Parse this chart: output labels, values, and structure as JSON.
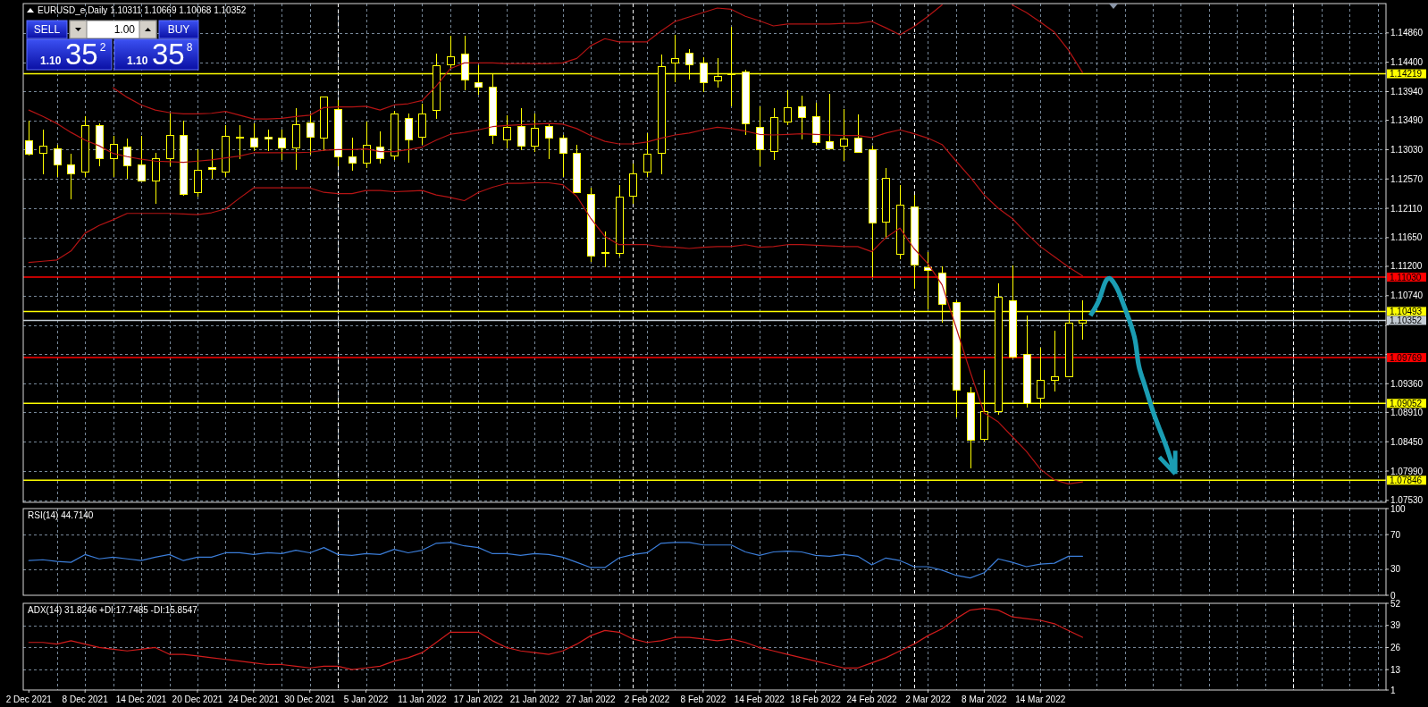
{
  "chart_data": [
    {
      "type": "candlestick",
      "title": "EURUSD_e,Daily 1.10311 1.10669 1.10068 1.10352",
      "annotations": [
        "SELL",
        "1.00",
        "BUY",
        "1.10",
        "35$^{2}$",
        "1.10",
        "35$^{8}$"
      ],
      "categories": [
        null,
        null,
        null,
        null,
        null,
        null,
        null,
        null,
        null,
        null,
        null,
        null,
        null,
        null,
        null,
        null,
        null,
        null,
        null,
        null,
        null,
        null,
        null,
        null,
        null,
        null,
        null,
        null,
        null,
        null,
        null,
        null,
        null,
        null,
        null,
        null,
        null,
        null,
        null,
        null,
        null,
        null,
        null,
        null,
        null,
        null,
        null,
        null,
        null,
        null,
        null,
        null,
        null,
        null,
        null,
        null,
        null,
        null,
        null,
        null,
        null,
        null,
        null,
        null,
        null,
        null,
        null,
        null,
        null,
        null,
        null,
        null,
        null,
        null,
        null,
        null,
        null,
        null,
        null,
        null,
        null,
        null,
        null,
        null,
        null,
        null,
        null,
        null,
        null,
        null,
        null,
        null,
        null,
        null,
        null,
        null,
        null
      ],
      "color": "#ffff00",
      "ohlc": [
        [
          1.1317,
          1.1348,
          1.1295,
          1.1296
        ],
        [
          1.1298,
          1.1334,
          1.1266,
          1.1309
        ],
        [
          1.1305,
          1.1311,
          1.1262,
          1.128
        ],
        [
          1.128,
          1.1297,
          1.1226,
          1.1266
        ],
        [
          1.1268,
          1.1355,
          1.1262,
          1.1341
        ],
        [
          1.1341,
          1.1344,
          1.1278,
          1.1289
        ],
        [
          1.1289,
          1.1324,
          1.1262,
          1.1312
        ],
        [
          1.1308,
          1.132,
          1.1259,
          1.1278
        ],
        [
          1.128,
          1.1324,
          1.1254,
          1.1254
        ],
        [
          1.1254,
          1.1298,
          1.122,
          1.1289
        ],
        [
          1.1289,
          1.136,
          1.1278,
          1.1326
        ],
        [
          1.1326,
          1.1348,
          1.1232,
          1.1234
        ],
        [
          1.1236,
          1.1303,
          1.123,
          1.1272
        ],
        [
          1.1276,
          1.1303,
          1.1259,
          1.1273
        ],
        [
          1.1269,
          1.1341,
          1.1262,
          1.1325
        ],
        [
          1.1323,
          1.1341,
          1.129,
          1.1323
        ],
        [
          1.1322,
          1.1344,
          1.1302,
          1.1308
        ],
        [
          1.1323,
          1.1334,
          1.1302,
          1.1321
        ],
        [
          1.1322,
          1.1334,
          1.1288,
          1.1307
        ],
        [
          1.1306,
          1.1368,
          1.1273,
          1.1343
        ],
        [
          1.1346,
          1.136,
          1.1296,
          1.1323
        ],
        [
          1.1322,
          1.1386,
          1.1302,
          1.1386
        ],
        [
          1.1366,
          1.138,
          1.1278,
          1.1292
        ],
        [
          1.1292,
          1.1322,
          1.1271,
          1.1282
        ],
        [
          1.1283,
          1.1347,
          1.1276,
          1.1311
        ],
        [
          1.1308,
          1.1332,
          1.1283,
          1.1289
        ],
        [
          1.1294,
          1.1364,
          1.1288,
          1.1359
        ],
        [
          1.1352,
          1.136,
          1.1284,
          1.1319
        ],
        [
          1.1323,
          1.1375,
          1.1312,
          1.1359
        ],
        [
          1.1365,
          1.1453,
          1.1353,
          1.1436
        ],
        [
          1.1437,
          1.1482,
          1.1433,
          1.145
        ],
        [
          1.1453,
          1.1482,
          1.1398,
          1.1413
        ],
        [
          1.1408,
          1.1435,
          1.139,
          1.1402
        ],
        [
          1.1401,
          1.1422,
          1.1313,
          1.1326
        ],
        [
          1.1319,
          1.1357,
          1.1306,
          1.1339
        ],
        [
          1.134,
          1.1368,
          1.1303,
          1.1309
        ],
        [
          1.1309,
          1.1359,
          1.1301,
          1.1337
        ],
        [
          1.134,
          1.1344,
          1.129,
          1.1322
        ],
        [
          1.1322,
          1.1326,
          1.1262,
          1.1298
        ],
        [
          1.1298,
          1.131,
          1.1236,
          1.1236
        ],
        [
          1.1234,
          1.1243,
          1.1129,
          1.1137
        ],
        [
          1.1143,
          1.1174,
          1.112,
          1.1143
        ],
        [
          1.1141,
          1.1248,
          1.1137,
          1.1229
        ],
        [
          1.123,
          1.1281,
          1.122,
          1.1266
        ],
        [
          1.1268,
          1.1329,
          1.1262,
          1.1296
        ],
        [
          1.1298,
          1.1452,
          1.1266,
          1.1434
        ],
        [
          1.1439,
          1.1483,
          1.141,
          1.1447
        ],
        [
          1.1455,
          1.146,
          1.1414,
          1.1437
        ],
        [
          1.1439,
          1.1448,
          1.1395,
          1.1408
        ],
        [
          1.1412,
          1.1447,
          1.1401,
          1.1419
        ],
        [
          1.1422,
          1.1495,
          1.1372,
          1.1421
        ],
        [
          1.1425,
          1.1428,
          1.1328,
          1.1344
        ],
        [
          1.1339,
          1.1371,
          1.1278,
          1.1303
        ],
        [
          1.1301,
          1.1368,
          1.1288,
          1.1354
        ],
        [
          1.1347,
          1.1396,
          1.1343,
          1.1369
        ],
        [
          1.1371,
          1.1387,
          1.1321,
          1.1354
        ],
        [
          1.1356,
          1.1377,
          1.1312,
          1.1315
        ],
        [
          1.1316,
          1.139,
          1.1305,
          1.1305
        ],
        [
          1.1309,
          1.1366,
          1.1287,
          1.1321
        ],
        [
          1.1322,
          1.1358,
          1.13,
          1.13
        ],
        [
          1.1303,
          1.1309,
          1.1105,
          1.1189
        ],
        [
          1.119,
          1.1274,
          1.1165,
          1.1259
        ],
        [
          1.1139,
          1.1247,
          1.1133,
          1.1217
        ],
        [
          1.1214,
          1.1232,
          1.1087,
          1.1123
        ],
        [
          1.1119,
          1.1143,
          1.1054,
          1.1115
        ],
        [
          1.111,
          1.112,
          1.1033,
          1.1061
        ],
        [
          1.1064,
          1.1067,
          1.0884,
          1.0926
        ],
        [
          1.0923,
          1.0931,
          1.0805,
          1.0848
        ],
        [
          1.085,
          1.0957,
          1.0846,
          1.0893
        ],
        [
          1.0893,
          1.1094,
          1.0889,
          1.1072
        ],
        [
          1.1067,
          1.1121,
          1.0977,
          1.0979
        ],
        [
          1.0983,
          1.1043,
          1.09,
          1.0905
        ],
        [
          1.0914,
          1.0993,
          1.0899,
          1.0942
        ],
        [
          1.0942,
          1.1019,
          1.0925,
          1.0947
        ],
        [
          1.0947,
          1.1047,
          1.0947,
          1.1031
        ],
        [
          1.10311,
          1.10669,
          1.10068,
          1.10352
        ],
        null,
        null,
        null,
        null,
        null,
        null,
        null,
        null,
        null,
        null,
        null,
        null,
        null,
        null,
        null,
        null,
        null,
        null,
        null,
        null,
        null
      ],
      "series": [
        {
          "type": "line",
          "color": "#b41414",
          "values": [
            null,
            null,
            null,
            null,
            null,
            null,
            1.14,
            1.1385,
            1.1373,
            1.1365,
            1.1361,
            1.1359,
            1.1359,
            1.136,
            1.1363,
            1.1357,
            1.1351,
            1.1351,
            1.1352,
            1.1355,
            1.1357,
            1.1369,
            1.137,
            1.137,
            1.1371,
            1.1365,
            1.1373,
            1.1375,
            1.138,
            1.1403,
            1.143,
            1.1439,
            1.1439,
            1.1439,
            1.1438,
            1.1438,
            1.1438,
            1.1438,
            1.1439,
            1.1446,
            1.1466,
            1.1477,
            1.1472,
            1.1472,
            1.1472,
            1.1489,
            1.1504,
            1.1511,
            1.1518,
            1.1525,
            1.1523,
            1.1512,
            1.1505,
            1.1497,
            1.15,
            1.15,
            1.15,
            1.15,
            1.1501,
            1.1501,
            1.1504,
            1.1494,
            1.1483,
            1.1496,
            1.1512,
            1.153,
            null,
            null,
            null,
            null,
            1.153,
            1.1518,
            1.1503,
            1.1487,
            1.1459,
            1.1424,
            null,
            null,
            null,
            null,
            null,
            null,
            null,
            null,
            null,
            null,
            null,
            null,
            null,
            null,
            null,
            null,
            null,
            null,
            null,
            null,
            null
          ]
        },
        {
          "type": "line",
          "color": "#b41414",
          "values": [
            1.1365,
            1.1355,
            1.1344,
            1.133,
            1.1318,
            1.1309,
            1.1297,
            1.1292,
            1.1288,
            1.1285,
            1.1284,
            1.1283,
            1.1285,
            1.1287,
            1.129,
            1.1293,
            1.1298,
            1.1298,
            1.1298,
            1.1298,
            1.1299,
            1.1302,
            1.1303,
            1.1303,
            1.1304,
            1.13,
            1.13,
            1.1303,
            1.1307,
            1.1318,
            1.1327,
            1.133,
            1.1334,
            1.1339,
            1.1341,
            1.1342,
            1.1343,
            1.1344,
            1.1343,
            1.1336,
            1.1325,
            1.1316,
            1.1312,
            1.1312,
            1.1315,
            1.1321,
            1.1326,
            1.1329,
            1.1334,
            1.1338,
            1.1336,
            1.1332,
            1.1327,
            1.1326,
            1.1327,
            1.1328,
            1.1327,
            1.1326,
            1.1325,
            1.1325,
            1.1322,
            1.1329,
            1.1334,
            1.1328,
            1.1321,
            1.1311,
            1.1285,
            1.126,
            1.1232,
            1.1211,
            1.1195,
            1.1172,
            1.1151,
            1.1135,
            1.1119,
            1.1105,
            null,
            null,
            null,
            null,
            null,
            null,
            null,
            null,
            null,
            null,
            null,
            null,
            null,
            null,
            null,
            null,
            null,
            null,
            null,
            null,
            null
          ]
        },
        {
          "type": "line",
          "color": "#b41414",
          "values": [
            1.1126,
            1.1128,
            1.113,
            1.1144,
            1.1172,
            1.1184,
            1.1193,
            1.1203,
            1.1203,
            1.1203,
            1.1203,
            1.1202,
            1.1201,
            1.1204,
            1.121,
            1.1227,
            1.1243,
            1.1243,
            1.1243,
            1.1243,
            1.1243,
            1.1236,
            1.1234,
            1.1234,
            1.1239,
            1.1239,
            1.1237,
            1.1238,
            1.1239,
            1.1232,
            1.1228,
            1.1223,
            1.1236,
            1.1244,
            1.125,
            1.125,
            1.1251,
            1.1251,
            1.1248,
            1.123,
            1.1195,
            1.1167,
            1.1154,
            1.1154,
            1.1154,
            1.1151,
            1.115,
            1.1148,
            1.115,
            1.1151,
            1.1151,
            1.1154,
            1.115,
            1.1151,
            1.1154,
            1.1154,
            1.1153,
            1.1152,
            1.1151,
            1.1151,
            1.1143,
            1.1165,
            1.118,
            1.1148,
            1.1124,
            1.1091,
            1.1024,
            1.0955,
            1.089,
            1.0876,
            1.0853,
            1.083,
            1.0802,
            1.0785,
            1.0779,
            1.0782,
            null,
            null,
            null,
            null,
            null,
            null,
            null,
            null,
            null,
            null,
            null,
            null,
            null,
            null,
            null,
            null,
            null,
            null,
            null,
            null,
            null
          ]
        }
      ],
      "ylim": [
        1.075,
        1.1532
      ],
      "yticks": [
        {
          "value": 1.1486,
          "label": "1.14860"
        },
        {
          "value": 1.144,
          "label": "1.14400"
        },
        {
          "value": 1.1394,
          "label": "1.13940"
        },
        {
          "value": 1.1349,
          "label": "1.13490"
        },
        {
          "value": 1.1303,
          "label": "1.13030"
        },
        {
          "value": 1.1257,
          "label": "1.12570"
        },
        {
          "value": 1.1211,
          "label": "1.12110"
        },
        {
          "value": 1.1165,
          "label": "1.11650"
        },
        {
          "value": 1.112,
          "label": "1.11200"
        },
        {
          "value": 1.1074,
          "label": "1.10740"
        },
        {
          "value": 1.1028,
          "label": null
        },
        {
          "value": 1.0982,
          "label": null
        },
        {
          "value": 1.0936,
          "label": "1.09360"
        },
        {
          "value": 1.0891,
          "label": "1.08910"
        },
        {
          "value": 1.0845,
          "label": "1.08450"
        },
        {
          "value": 1.0799,
          "label": "1.07990"
        },
        {
          "value": 1.0753,
          "label": "1.07530"
        }
      ],
      "grid": true,
      "tick_labels": "y",
      "ref_lines": [
        {
          "axis": "y",
          "value": 1.14219,
          "label": "1.14219",
          "color": "#ffff00"
        },
        {
          "axis": "y",
          "value": 1.1103,
          "label": "1.11030",
          "color": "#ff0000"
        },
        {
          "axis": "y",
          "value": 1.10493,
          "label": "1.10493",
          "color": "#ffff00"
        },
        {
          "axis": "y",
          "value": 1.10352,
          "label": "1.10352",
          "color": "#c4ccd4"
        },
        {
          "axis": "y",
          "value": 1.09769,
          "label": "1.09769",
          "color": "#ff0000"
        },
        {
          "axis": "y",
          "value": 1.09052,
          "label": "1.09052",
          "color": "#ffff00"
        },
        {
          "axis": "y",
          "value": 1.07846,
          "label": "1.07846",
          "color": "#ffff00"
        }
      ]
    },
    {
      "type": "line",
      "title": "RSI(14) 44.7140",
      "categories": [
        null,
        null,
        null,
        null,
        null,
        null,
        null,
        null,
        null,
        null,
        null,
        null,
        null,
        null,
        null,
        null,
        null,
        null,
        null,
        null,
        null,
        null,
        null,
        null,
        null,
        null,
        null,
        null,
        null,
        null,
        null,
        null,
        null,
        null,
        null,
        null,
        null,
        null,
        null,
        null,
        null,
        null,
        null,
        null,
        null,
        null,
        null,
        null,
        null,
        null,
        null,
        null,
        null,
        null,
        null,
        null,
        null,
        null,
        null,
        null,
        null,
        null,
        null,
        null,
        null,
        null,
        null,
        null,
        null,
        null,
        null,
        null,
        null,
        null,
        null,
        null,
        null,
        null,
        null,
        null,
        null,
        null,
        null,
        null,
        null,
        null,
        null,
        null,
        null,
        null,
        null,
        null,
        null,
        null,
        null,
        null,
        null
      ],
      "series": [
        {
          "color": "#3b7dd8",
          "values": [
            40,
            41,
            39,
            38,
            47,
            42,
            44,
            42,
            40,
            44,
            47,
            40,
            44,
            44,
            49,
            49,
            47,
            49,
            48,
            52,
            49,
            55,
            47,
            46,
            48,
            47,
            53,
            49,
            52,
            60,
            61,
            57,
            55,
            48,
            48,
            46,
            48,
            47,
            44,
            38,
            32,
            32,
            43,
            47,
            49,
            60,
            61,
            61,
            58,
            58,
            58,
            50,
            46,
            50,
            51,
            50,
            46,
            45,
            47,
            45,
            35,
            43,
            40,
            33,
            33,
            29,
            23,
            20,
            26,
            42,
            38,
            33,
            36,
            37,
            45,
            45,
            null,
            null,
            null,
            null,
            null,
            null,
            null,
            null,
            null,
            null,
            null,
            null,
            null,
            null,
            null,
            null,
            null,
            null,
            null,
            null,
            null
          ]
        }
      ],
      "ylim": [
        0,
        100
      ],
      "yticks": [
        100,
        70,
        30,
        0
      ],
      "grid": true,
      "tick_labels": "y"
    },
    {
      "type": "line",
      "title": "ADX(14) 31.8246 +DI:17.7485 -DI:15.8547",
      "categories": [
        "2 Dec 2021",
        null,
        null,
        null,
        "8 Dec 2021",
        null,
        null,
        null,
        "14 Dec 2021",
        null,
        null,
        null,
        "20 Dec 2021",
        null,
        null,
        null,
        "24 Dec 2021",
        null,
        null,
        null,
        "30 Dec 2021",
        null,
        null,
        null,
        "5 Jan 2022",
        null,
        null,
        null,
        "11 Jan 2022",
        null,
        null,
        null,
        "17 Jan 2022",
        null,
        null,
        null,
        "21 Jan 2022",
        null,
        null,
        null,
        "27 Jan 2022",
        null,
        null,
        null,
        "2 Feb 2022",
        null,
        null,
        null,
        "8 Feb 2022",
        null,
        null,
        null,
        "14 Feb 2022",
        null,
        null,
        null,
        "18 Feb 2022",
        null,
        null,
        null,
        "24 Feb 2022",
        null,
        null,
        null,
        "2 Mar 2022",
        null,
        null,
        null,
        "8 Mar 2022",
        null,
        null,
        null,
        "14 Mar 2022",
        null,
        null,
        null,
        null,
        null,
        null,
        null,
        null,
        null,
        null,
        null,
        null,
        null,
        null,
        null,
        null,
        null,
        null,
        null,
        null,
        null,
        null,
        null,
        null
      ],
      "series": [
        {
          "color": "#d01c1c",
          "values": [
            29,
            29,
            28,
            30,
            28,
            26,
            25,
            24,
            25,
            26,
            22,
            22,
            21,
            20,
            19,
            18,
            17,
            16,
            16,
            15,
            14,
            15,
            15,
            13,
            14,
            15,
            18,
            20,
            23,
            29,
            35,
            35,
            35,
            30,
            26,
            24,
            23,
            22,
            24,
            28,
            33,
            36,
            35,
            31,
            29,
            30,
            32,
            32,
            31,
            30,
            31,
            29,
            26,
            24,
            22,
            20,
            18,
            16,
            14,
            14,
            17,
            20,
            24,
            28,
            33,
            37,
            43,
            48,
            49,
            48,
            44,
            43,
            42,
            40,
            36,
            32,
            null,
            null,
            null,
            null,
            null,
            null,
            null,
            null,
            null,
            null,
            null,
            null,
            null,
            null,
            null,
            null,
            null,
            null,
            null,
            null,
            null
          ]
        }
      ],
      "ylim": [
        1,
        52
      ],
      "yticks": [
        52,
        39,
        26,
        13,
        1
      ],
      "grid": true
    }
  ]
}
